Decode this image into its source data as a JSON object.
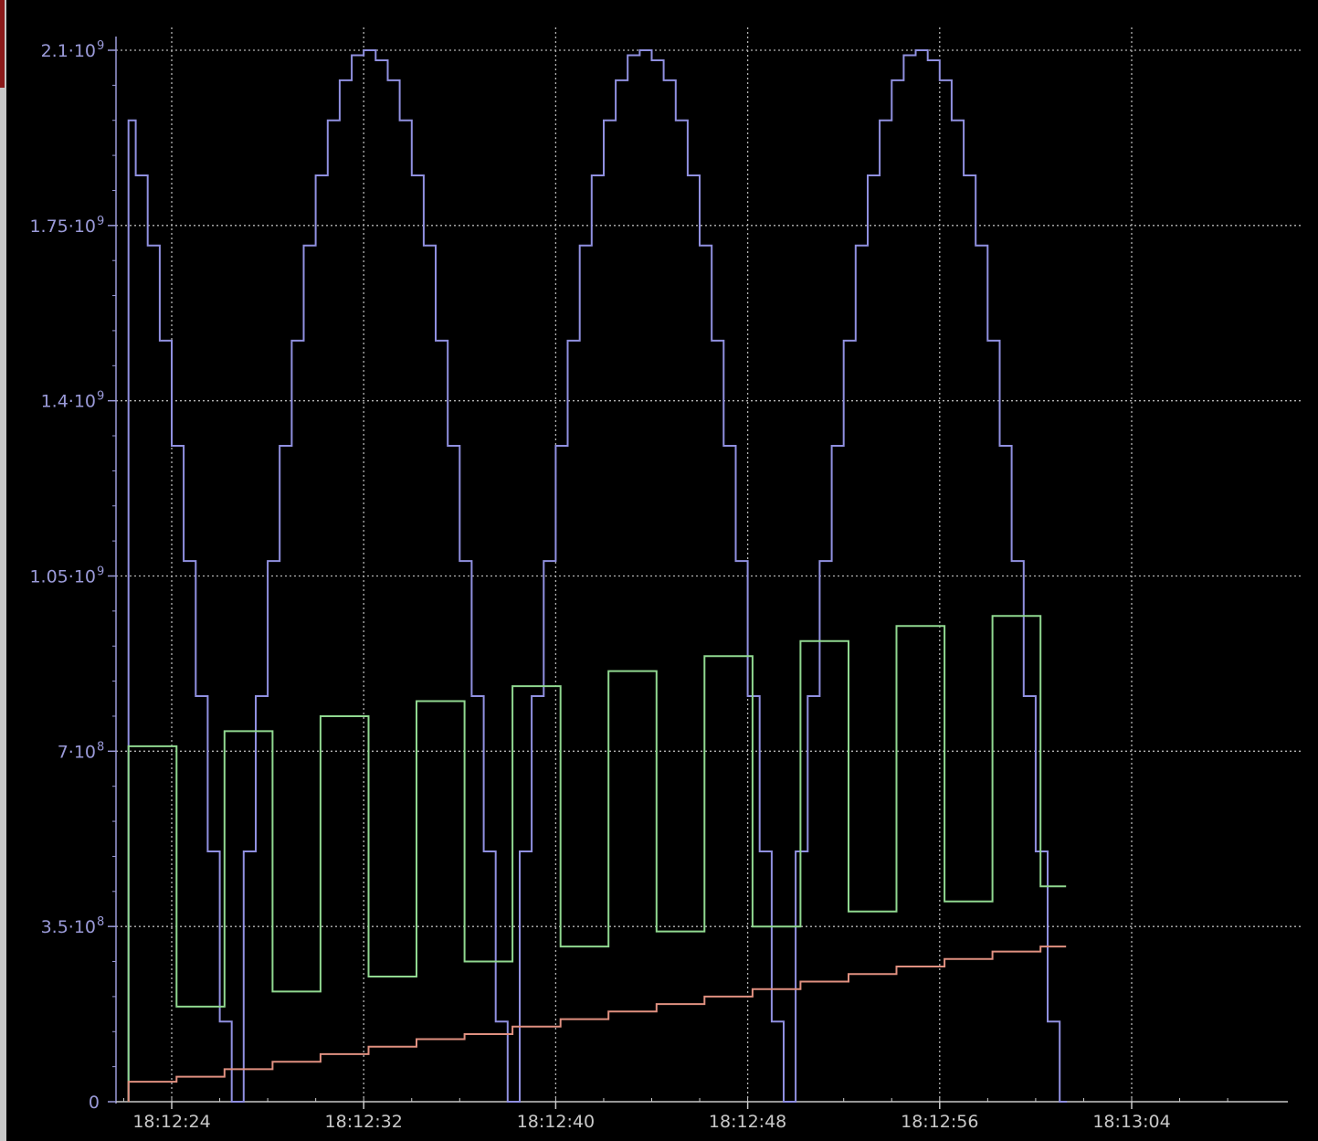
{
  "chart_data": {
    "type": "line",
    "step": true,
    "grid": true,
    "background": "#000000",
    "grid_color": "#b4b4b4",
    "axis_color": "#9a9ad8",
    "x_tick_color": "#c8c8c8",
    "xlim": [
      "18:12:22",
      "18:13:08"
    ],
    "ylim": [
      0,
      2100000000
    ],
    "x_ticks": [
      "18:12:24",
      "18:12:32",
      "18:12:40",
      "18:12:48",
      "18:12:56",
      "18:13:04"
    ],
    "y_ticks": [
      {
        "value": 0,
        "mant": "0",
        "exp": ""
      },
      {
        "value": 350000000,
        "mant": "3.5·10",
        "exp": "8"
      },
      {
        "value": 700000000,
        "mant": "7·10",
        "exp": "8"
      },
      {
        "value": 1050000000,
        "mant": "1.05·10",
        "exp": "9"
      },
      {
        "value": 1400000000,
        "mant": "1.4·10",
        "exp": "9"
      },
      {
        "value": 1750000000,
        "mant": "1.75·10",
        "exp": "9"
      },
      {
        "value": 2100000000,
        "mant": "2.1·10",
        "exp": "9"
      }
    ],
    "series": [
      {
        "color": "#9090e0",
        "x": [
          "18:12:22.2",
          "18:12:22.5",
          "18:12:23.0",
          "18:12:23.5",
          "18:12:24.0",
          "18:12:24.5",
          "18:12:25.0",
          "18:12:25.5",
          "18:12:26.0",
          "18:12:26.5",
          "18:12:27.0",
          "18:12:27.5",
          "18:12:28.0",
          "18:12:28.5",
          "18:12:29.0",
          "18:12:29.5",
          "18:12:30.0",
          "18:12:30.5",
          "18:12:31.0",
          "18:12:31.5",
          "18:12:32.0",
          "18:12:32.5",
          "18:12:33.0",
          "18:12:33.5",
          "18:12:34.0",
          "18:12:34.5",
          "18:12:35.0",
          "18:12:35.5",
          "18:12:36.0",
          "18:12:36.5",
          "18:12:37.0",
          "18:12:37.5",
          "18:12:38.0",
          "18:12:38.5",
          "18:12:39.0",
          "18:12:39.5",
          "18:12:40.0",
          "18:12:40.5",
          "18:12:41.0",
          "18:12:41.5",
          "18:12:42.0",
          "18:12:42.5",
          "18:12:43.0",
          "18:12:43.5",
          "18:12:44.0",
          "18:12:44.5",
          "18:12:45.0",
          "18:12:45.5",
          "18:12:46.0",
          "18:12:46.5",
          "18:12:47.0",
          "18:12:47.5",
          "18:12:48.0",
          "18:12:48.5",
          "18:12:49.0",
          "18:12:49.5",
          "18:12:50.0",
          "18:12:50.5",
          "18:12:51.0",
          "18:12:51.5",
          "18:12:52.0",
          "18:12:52.5",
          "18:12:53.0",
          "18:12:53.5",
          "18:12:54.0",
          "18:12:54.5",
          "18:12:55.0",
          "18:12:55.5",
          "18:12:56.0",
          "18:12:56.5",
          "18:12:57.0",
          "18:12:57.5",
          "18:12:58.0",
          "18:12:58.5",
          "18:12:59.0",
          "18:12:59.5",
          "18:13:00.0",
          "18:13:00.5",
          "18:13:01.0"
        ],
        "y": [
          1960000000,
          1850000000,
          1710000000,
          1520000000,
          1310000000,
          1080000000,
          810000000,
          500000000,
          160000000,
          0,
          500000000,
          810000000,
          1080000000,
          1310000000,
          1520000000,
          1710000000,
          1850000000,
          1960000000,
          2040000000,
          2090000000,
          2100000000,
          2080000000,
          2040000000,
          1960000000,
          1850000000,
          1710000000,
          1520000000,
          1310000000,
          1080000000,
          810000000,
          500000000,
          160000000,
          0,
          500000000,
          810000000,
          1080000000,
          1310000000,
          1520000000,
          1710000000,
          1850000000,
          1960000000,
          2040000000,
          2090000000,
          2100000000,
          2080000000,
          2040000000,
          1960000000,
          1850000000,
          1710000000,
          1520000000,
          1310000000,
          1080000000,
          810000000,
          500000000,
          160000000,
          0,
          500000000,
          810000000,
          1080000000,
          1310000000,
          1520000000,
          1710000000,
          1850000000,
          1960000000,
          2040000000,
          2090000000,
          2100000000,
          2080000000,
          2040000000,
          1960000000,
          1850000000,
          1710000000,
          1520000000,
          1310000000,
          1080000000,
          810000000,
          500000000,
          160000000,
          0
        ]
      },
      {
        "color": "#90d890",
        "x": [
          "18:12:22.2",
          "18:12:24.2",
          "18:12:26.2",
          "18:12:28.2",
          "18:12:30.2",
          "18:12:32.2",
          "18:12:34.2",
          "18:12:36.2",
          "18:12:38.2",
          "18:12:40.2",
          "18:12:42.2",
          "18:12:44.2",
          "18:12:46.2",
          "18:12:48.2",
          "18:12:50.2",
          "18:12:52.2",
          "18:12:54.2",
          "18:12:56.2",
          "18:12:58.2",
          "18:13:00.2"
        ],
        "y": [
          710000000,
          190000000,
          740000000,
          220000000,
          770000000,
          250000000,
          800000000,
          280000000,
          830000000,
          310000000,
          860000000,
          340000000,
          890000000,
          350000000,
          920000000,
          380000000,
          950000000,
          400000000,
          970000000,
          430000000
        ]
      },
      {
        "color": "#e09080",
        "x": [
          "18:12:22.2",
          "18:12:24.2",
          "18:12:26.2",
          "18:12:28.2",
          "18:12:30.2",
          "18:12:32.2",
          "18:12:34.2",
          "18:12:36.2",
          "18:12:38.2",
          "18:12:40.2",
          "18:12:42.2",
          "18:12:44.2",
          "18:12:46.2",
          "18:12:48.2",
          "18:12:50.2",
          "18:12:52.2",
          "18:12:54.2",
          "18:12:56.2",
          "18:12:58.2",
          "18:13:00.2"
        ],
        "y": [
          40000000,
          50000000,
          65000000,
          80000000,
          95000000,
          110000000,
          125000000,
          135000000,
          150000000,
          165000000,
          180000000,
          195000000,
          210000000,
          225000000,
          240000000,
          255000000,
          270000000,
          285000000,
          300000000,
          310000000
        ]
      }
    ]
  }
}
